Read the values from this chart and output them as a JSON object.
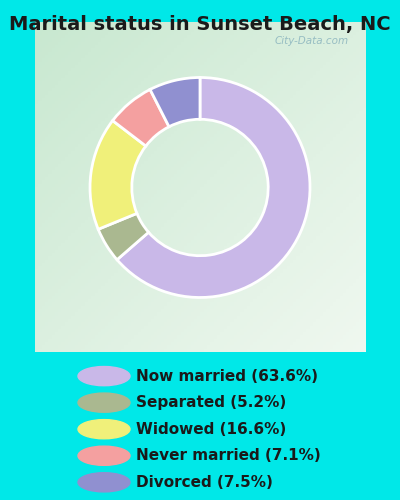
{
  "title": "Marital status in Sunset Beach, NC",
  "slices": [
    {
      "label": "Now married (63.6%)",
      "value": 63.6,
      "color": "#c9b8e8"
    },
    {
      "label": "Separated (5.2%)",
      "value": 5.2,
      "color": "#aab890"
    },
    {
      "label": "Widowed (16.6%)",
      "value": 16.6,
      "color": "#f0f07a"
    },
    {
      "label": "Never married (7.1%)",
      "value": 7.1,
      "color": "#f4a0a0"
    },
    {
      "label": "Divorced (7.5%)",
      "value": 7.5,
      "color": "#9090d0"
    }
  ],
  "bg_outer": "#00e8e8",
  "bg_chart_top_left": "#c8e8d0",
  "bg_chart_bottom_right": "#e8f4e8",
  "watermark": "City-Data.com",
  "title_fontsize": 14,
  "legend_fontsize": 11,
  "donut_width": 0.38
}
